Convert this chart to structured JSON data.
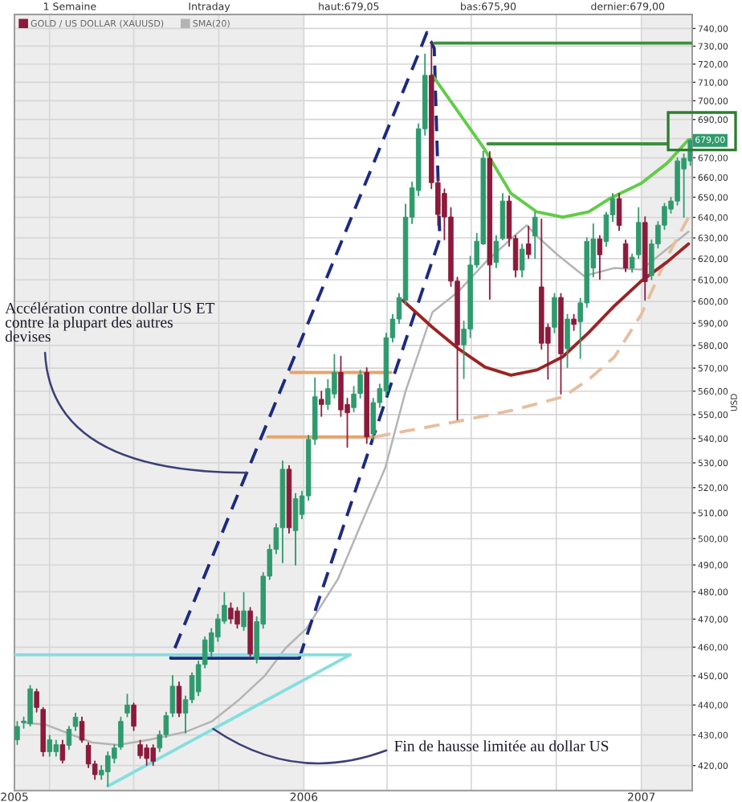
{
  "chart_data": {
    "type": "candlestick",
    "annotations": [
      "1 Semaine",
      "Intraday",
      "haut:679,05",
      "bas:675,90",
      "dernier:679,00",
      {
        "text": "Accélération contre dollar US ET\ncontre la plupart des autres\ndevises",
        "x": "2005-10-31",
        "y": 526
      },
      {
        "text": "Fin de hausse limitée au dollar US",
        "x": "2005-09-25",
        "y": 432.0
      },
      {
        "text": "679,00",
        "y": 679
      }
    ],
    "ylabel": "USD",
    "log": true,
    "xlim": [
      "2005-02-22",
      "2007-02-25"
    ],
    "ylim": [
      412,
      748
    ],
    "xticks": [
      {
        "value": "2005-02-22",
        "label": "2005"
      },
      {
        "value": "2005-04-01",
        "label": null
      },
      {
        "value": "2005-07-01",
        "label": null
      },
      {
        "value": "2005-10-01",
        "label": null
      },
      {
        "value": "2006-01-01",
        "label": "2006"
      },
      {
        "value": "2006-04-01",
        "label": null
      },
      {
        "value": "2006-07-01",
        "label": null
      },
      {
        "value": "2006-10-01",
        "label": null
      },
      {
        "value": "2007-01-01",
        "label": "2007"
      }
    ],
    "yticks": [
      {
        "value": 420,
        "label": "420,00"
      },
      {
        "value": 430,
        "label": "430,00"
      },
      {
        "value": 440,
        "label": "440,00"
      },
      {
        "value": 450,
        "label": "450,00"
      },
      {
        "value": 460,
        "label": "460,00"
      },
      {
        "value": 470,
        "label": "470,00"
      },
      {
        "value": 480,
        "label": "480,00"
      },
      {
        "value": 490,
        "label": "490,00"
      },
      {
        "value": 500,
        "label": "500,00"
      },
      {
        "value": 510,
        "label": "510,00"
      },
      {
        "value": 520,
        "label": "520,00"
      },
      {
        "value": 530,
        "label": "530,00"
      },
      {
        "value": 540,
        "label": "540,00"
      },
      {
        "value": 550,
        "label": "550,00"
      },
      {
        "value": 560,
        "label": "560,00"
      },
      {
        "value": 570,
        "label": "570,00"
      },
      {
        "value": 580,
        "label": "580,00"
      },
      {
        "value": 590,
        "label": "590,00"
      },
      {
        "value": 600,
        "label": "600,00"
      },
      {
        "value": 610,
        "label": "610,00"
      },
      {
        "value": 620,
        "label": "620,00"
      },
      {
        "value": 630,
        "label": "630,00"
      },
      {
        "value": 640,
        "label": "640,00"
      },
      {
        "value": 650,
        "label": "650,00"
      },
      {
        "value": 660,
        "label": "660,00"
      },
      {
        "value": 670,
        "label": "670,00"
      },
      {
        "value": 680,
        "label": null
      },
      {
        "value": 690,
        "label": "690,00"
      },
      {
        "value": 700,
        "label": "700,00"
      },
      {
        "value": 710,
        "label": "710,00"
      },
      {
        "value": 720,
        "label": "720,00"
      },
      {
        "value": 730,
        "label": "730,00"
      },
      {
        "value": 740,
        "label": "740,00"
      }
    ],
    "grid": true,
    "legend": "top left",
    "bands": [
      {
        "axis": "x",
        "from": "2005-02-22",
        "to": "2006-01-01",
        "color": "#ededed"
      },
      {
        "axis": "x",
        "from": "2007-01-01",
        "to": "2007-02-25",
        "color": "#ededed"
      }
    ],
    "series": [
      {
        "name": "GOLD / US DOLLAR (XAUUSD)",
        "color": "#8b1a3c",
        "x": [
          "2005-02-25",
          "2005-03-04",
          "2005-03-11",
          "2005-03-18",
          "2005-03-25",
          "2005-04-01",
          "2005-04-08",
          "2005-04-15",
          "2005-04-22",
          "2005-04-29",
          "2005-05-06",
          "2005-05-13",
          "2005-05-20",
          "2005-05-27",
          "2005-06-03",
          "2005-06-10",
          "2005-06-17",
          "2005-06-24",
          "2005-07-01",
          "2005-07-08",
          "2005-07-15",
          "2005-07-22",
          "2005-07-29",
          "2005-08-05",
          "2005-08-12",
          "2005-08-19",
          "2005-08-26",
          "2005-09-02",
          "2005-09-09",
          "2005-09-16",
          "2005-09-23",
          "2005-09-30",
          "2005-10-07",
          "2005-10-14",
          "2005-10-21",
          "2005-10-28",
          "2005-11-04",
          "2005-11-11",
          "2005-11-18",
          "2005-11-25",
          "2005-12-02",
          "2005-12-09",
          "2005-12-16",
          "2005-12-23",
          "2005-12-30",
          "2006-01-06",
          "2006-01-13",
          "2006-01-20",
          "2006-01-27",
          "2006-02-03",
          "2006-02-10",
          "2006-02-17",
          "2006-02-24",
          "2006-03-03",
          "2006-03-10",
          "2006-03-17",
          "2006-03-24",
          "2006-03-31",
          "2006-04-07",
          "2006-04-14",
          "2006-04-21",
          "2006-04-28",
          "2006-05-05",
          "2006-05-12",
          "2006-05-19",
          "2006-05-26",
          "2006-06-02",
          "2006-06-09",
          "2006-06-16",
          "2006-06-23",
          "2006-06-30",
          "2006-07-07",
          "2006-07-14",
          "2006-07-21",
          "2006-07-28",
          "2006-08-04",
          "2006-08-11",
          "2006-08-18",
          "2006-08-25",
          "2006-09-01",
          "2006-09-08",
          "2006-09-15",
          "2006-09-22",
          "2006-09-29",
          "2006-10-06",
          "2006-10-13",
          "2006-10-20",
          "2006-10-27",
          "2006-11-03",
          "2006-11-10",
          "2006-11-17",
          "2006-11-24",
          "2006-12-01",
          "2006-12-08",
          "2006-12-15",
          "2006-12-22",
          "2006-12-29",
          "2007-01-05",
          "2007-01-12",
          "2007-01-19",
          "2007-01-26",
          "2007-02-02",
          "2007-02-09",
          "2007-02-16",
          "2007-02-23"
        ],
        "ohlc": [
          [
            428.4,
            434.5,
            426.8,
            432.8
          ],
          [
            434.1,
            436.0,
            432.2,
            434.6
          ],
          [
            433.7,
            446.7,
            432.9,
            445.5
          ],
          [
            444.5,
            445.5,
            437.6,
            439.2
          ],
          [
            438.5,
            439.2,
            423.0,
            424.5
          ],
          [
            424.5,
            429.9,
            423.0,
            428.4
          ],
          [
            424.5,
            428.3,
            423.0,
            426.8
          ],
          [
            426.8,
            428.3,
            420.8,
            421.7
          ],
          [
            426.6,
            432.9,
            425.2,
            431.9
          ],
          [
            432.8,
            437.3,
            431.4,
            435.9
          ],
          [
            434.5,
            436.0,
            427.5,
            428.3
          ],
          [
            426.6,
            427.5,
            419.3,
            420.5
          ],
          [
            420.5,
            421.5,
            415.5,
            417.1
          ],
          [
            417.0,
            420.0,
            415.5,
            418.5
          ],
          [
            418.0,
            424.5,
            413.4,
            423.2
          ],
          [
            422.3,
            426.8,
            420.8,
            425.7
          ],
          [
            426.0,
            436.0,
            425.2,
            434.5
          ],
          [
            437.3,
            443.7,
            436.0,
            440.0
          ],
          [
            440.0,
            440.7,
            431.4,
            432.9
          ],
          [
            426.8,
            428.3,
            422.3,
            423.2
          ],
          [
            425.7,
            426.8,
            420.0,
            422.3
          ],
          [
            425.7,
            426.8,
            420.0,
            421.4
          ],
          [
            425.7,
            431.4,
            424.5,
            430.1
          ],
          [
            430.1,
            437.6,
            429.1,
            436.4
          ],
          [
            437.3,
            450.1,
            436.0,
            446.4
          ],
          [
            446.4,
            447.9,
            436.0,
            437.3
          ],
          [
            437.3,
            443.1,
            430.6,
            441.8
          ],
          [
            441.8,
            451.1,
            440.7,
            450.1
          ],
          [
            444.5,
            455.2,
            443.1,
            453.9
          ],
          [
            453.9,
            463.7,
            452.7,
            462.6
          ],
          [
            458.4,
            466.7,
            456.8,
            465.1
          ],
          [
            463.6,
            471.8,
            462.0,
            470.1
          ],
          [
            469.3,
            479.8,
            468.4,
            475.0
          ],
          [
            474.0,
            476.0,
            468.4,
            470.1
          ],
          [
            473.0,
            474.3,
            466.7,
            468.2
          ],
          [
            467.3,
            479.8,
            465.9,
            473.0
          ],
          [
            473.0,
            474.3,
            456.8,
            457.6
          ],
          [
            455.7,
            470.9,
            454.4,
            469.1
          ],
          [
            468.2,
            487.2,
            466.7,
            485.8
          ],
          [
            485.8,
            497.7,
            484.5,
            495.9
          ],
          [
            495.9,
            505.8,
            494.2,
            504.2
          ],
          [
            504.2,
            530.8,
            490.8,
            527.4
          ],
          [
            527.4,
            528.9,
            502.1,
            504.2
          ],
          [
            503.1,
            517.7,
            489.9,
            515.6
          ],
          [
            509.4,
            518.6,
            507.6,
            516.7
          ],
          [
            516.7,
            541.4,
            514.9,
            539.6
          ],
          [
            539.6,
            565.8,
            537.5,
            557.6
          ],
          [
            556.5,
            560.0,
            549.2,
            554.3
          ],
          [
            554.3,
            565.1,
            552.1,
            561.1
          ],
          [
            558.8,
            576.1,
            557.0,
            568.1
          ],
          [
            568.1,
            575.3,
            549.2,
            552.0
          ],
          [
            554.3,
            557.0,
            536.3,
            550.8
          ],
          [
            553.0,
            562.1,
            551.1,
            558.8
          ],
          [
            559.0,
            569.1,
            557.0,
            567.1
          ],
          [
            568.1,
            570.2,
            537.9,
            540.7
          ],
          [
            541.9,
            557.0,
            539.4,
            555.1
          ],
          [
            555.1,
            563.1,
            553.0,
            561.1
          ],
          [
            560.0,
            585.6,
            558.0,
            583.5
          ],
          [
            583.5,
            594.1,
            581.5,
            591.9
          ],
          [
            591.9,
            603.7,
            589.8,
            601.8
          ],
          [
            600.5,
            646.6,
            598.3,
            640.1
          ],
          [
            640.1,
            657.7,
            636.9,
            654.7
          ],
          [
            653.4,
            687.8,
            650.7,
            685.1
          ],
          [
            685.1,
            725.7,
            681.7,
            713.8
          ],
          [
            713.8,
            733.0,
            654.2,
            657.3
          ],
          [
            657.3,
            660.0,
            636.0,
            641.4
          ],
          [
            651.9,
            654.2,
            629.0,
            640.2
          ],
          [
            640.2,
            644.9,
            606.9,
            609.4
          ],
          [
            609.4,
            611.3,
            547.7,
            580.3
          ],
          [
            580.3,
            591.0,
            565.4,
            587.4
          ],
          [
            587.4,
            621.2,
            583.5,
            617.0
          ],
          [
            617.0,
            632.3,
            615.7,
            628.4
          ],
          [
            627.1,
            673.5,
            626.7,
            669.7
          ],
          [
            669.7,
            673.2,
            600.9,
            617.0
          ],
          [
            618.3,
            631.2,
            615.7,
            628.4
          ],
          [
            629.7,
            651.9,
            629.0,
            648.1
          ],
          [
            648.1,
            650.7,
            625.9,
            629.7
          ],
          [
            629.7,
            631.2,
            611.3,
            614.6
          ],
          [
            614.6,
            627.0,
            611.3,
            624.6
          ],
          [
            627.1,
            635.8,
            620.1,
            622.0
          ],
          [
            630.9,
            642.6,
            620.1,
            640.1
          ],
          [
            606.7,
            639.2,
            578.3,
            581.0
          ],
          [
            588.2,
            589.8,
            565.1,
            581.0
          ],
          [
            588.2,
            603.7,
            585.6,
            601.8
          ],
          [
            601.8,
            603.7,
            558.7,
            576.3
          ],
          [
            578.6,
            594.1,
            570.2,
            591.9
          ],
          [
            591.9,
            594.1,
            586.7,
            589.5
          ],
          [
            590.7,
            601.5,
            574.2,
            599.3
          ],
          [
            599.3,
            630.1,
            597.2,
            628.3
          ],
          [
            615.6,
            636.9,
            611.3,
            629.5
          ],
          [
            629.5,
            631.2,
            610.2,
            621.9
          ],
          [
            628.3,
            642.6,
            625.9,
            641.3
          ],
          [
            641.3,
            651.9,
            637.9,
            649.3
          ],
          [
            649.3,
            651.9,
            633.5,
            636.1
          ],
          [
            627.2,
            629.0,
            613.8,
            615.6
          ],
          [
            615.6,
            622.3,
            613.5,
            620.7
          ],
          [
            621.9,
            644.9,
            620.1,
            637.5
          ],
          [
            637.5,
            640.3,
            600.5,
            609.2
          ],
          [
            612.0,
            629.0,
            610.0,
            627.1
          ],
          [
            627.1,
            638.0,
            625.0,
            636.2
          ],
          [
            636.2,
            647.0,
            634.0,
            645.4
          ],
          [
            644.1,
            650.0,
            642.0,
            648.1
          ],
          [
            648.1,
            670.0,
            646.0,
            668.4
          ],
          [
            664.3,
            672.0,
            640.0,
            669.7
          ],
          [
            668.4,
            680.0,
            666.0,
            679.0
          ]
        ],
        "colors": [
          "#2f9a6e",
          "#2f9a6e",
          "#2f9a6e",
          "#8b1a3c",
          "#8b1a3c",
          "#2f9a6e",
          "#2f9a6e",
          "#8b1a3c",
          "#2f9a6e",
          "#2f9a6e",
          "#8b1a3c",
          "#8b1a3c",
          "#8b1a3c",
          "#2f9a6e",
          "#2f9a6e",
          "#2f9a6e",
          "#2f9a6e",
          "#2f9a6e",
          "#8b1a3c",
          "#8b1a3c",
          "#8b1a3c",
          "#8b1a3c",
          "#2f9a6e",
          "#2f9a6e",
          "#2f9a6e",
          "#8b1a3c",
          "#2f9a6e",
          "#2f9a6e",
          "#2f9a6e",
          "#2f9a6e",
          "#2f9a6e",
          "#2f9a6e",
          "#2f9a6e",
          "#8b1a3c",
          "#8b1a3c",
          "#2f9a6e",
          "#8b1a3c",
          "#2f9a6e",
          "#2f9a6e",
          "#2f9a6e",
          "#2f9a6e",
          "#2f9a6e",
          "#8b1a3c",
          "#2f9a6e",
          "#2f9a6e",
          "#2f9a6e",
          "#2f9a6e",
          "#8b1a3c",
          "#2f9a6e",
          "#2f9a6e",
          "#8b1a3c",
          "#8b1a3c",
          "#2f9a6e",
          "#2f9a6e",
          "#8b1a3c",
          "#2f9a6e",
          "#2f9a6e",
          "#2f9a6e",
          "#2f9a6e",
          "#2f9a6e",
          "#2f9a6e",
          "#2f9a6e",
          "#2f9a6e",
          "#2f9a6e",
          "#8b1a3c",
          "#8b1a3c",
          "#8b1a3c",
          "#8b1a3c",
          "#8b1a3c",
          "#2f9a6e",
          "#2f9a6e",
          "#2f9a6e",
          "#2f9a6e",
          "#8b1a3c",
          "#2f9a6e",
          "#2f9a6e",
          "#8b1a3c",
          "#8b1a3c",
          "#2f9a6e",
          "#8b1a3c",
          "#2f9a6e",
          "#8b1a3c",
          "#8b1a3c",
          "#2f9a6e",
          "#8b1a3c",
          "#2f9a6e",
          "#8b1a3c",
          "#2f9a6e",
          "#2f9a6e",
          "#2f9a6e",
          "#8b1a3c",
          "#2f9a6e",
          "#2f9a6e",
          "#8b1a3c",
          "#8b1a3c",
          "#2f9a6e",
          "#2f9a6e",
          "#8b1a3c",
          "#2f9a6e",
          "#2f9a6e",
          "#2f9a6e",
          "#2f9a6e",
          "#2f9a6e",
          "#2f9a6e",
          "#2f9a6e"
        ]
      },
      {
        "type": "line",
        "name": "SMA(20)",
        "color": "#b4b4b4",
        "x": [
          "2005-03-04",
          "2005-03-28",
          "2005-05-17",
          "2005-06-14",
          "2005-07-19",
          "2005-08-27",
          "2005-09-24",
          "2005-10-23",
          "2005-11-20",
          "2005-12-12",
          "2006-01-04",
          "2006-02-07",
          "2006-03-03",
          "2006-03-30",
          "2006-04-21",
          "2006-05-20",
          "2006-06-17",
          "2006-07-16",
          "2006-08-13",
          "2006-08-30",
          "2006-09-10",
          "2006-10-02",
          "2006-10-31",
          "2006-12-03",
          "2007-01-01",
          "2007-02-21"
        ],
        "values": [
          434.1,
          433.4,
          427.5,
          426.7,
          428.5,
          431.1,
          434.6,
          441.8,
          450.1,
          459.6,
          466.7,
          484.8,
          504.9,
          527.9,
          560.0,
          595.0,
          604.5,
          618.1,
          629.5,
          636.1,
          630.9,
          622.0,
          611.8,
          615.6,
          614.8,
          633.0
        ]
      },
      {
        "type": "line",
        "color": "#1c2a80",
        "line_style": "dashed",
        "x": [
          "2005-12-27",
          "2006-05-28",
          "2006-05-22",
          "2006-05-14",
          "2006-05-05",
          "2005-08-10"
        ],
        "values": [
          456.1,
          629.7,
          728.7,
          737.7,
          725.8,
          456.1
        ]
      },
      {
        "type": "line",
        "color": "#1c2a80",
        "x": [
          "2005-08-10",
          "2005-12-27"
        ],
        "values": [
          456.1,
          456.1
        ]
      },
      {
        "type": "line",
        "color": "#86dede",
        "x": [
          "2005-02-22",
          "2006-02-20"
        ],
        "values": [
          457.3,
          457.3
        ]
      },
      {
        "type": "line",
        "color": "#86dede",
        "x": [
          "2005-06-03",
          "2006-02-20"
        ],
        "values": [
          413.4,
          457.3
        ]
      },
      {
        "type": "line",
        "color": "#e8a468",
        "x": [
          "2005-12-18",
          "2006-04-05"
        ],
        "values": [
          568.1,
          568.1
        ]
      },
      {
        "type": "line",
        "color": "#e8a468",
        "x": [
          "2005-11-23",
          "2006-03-19"
        ],
        "values": [
          540.7,
          540.7
        ]
      },
      {
        "type": "line",
        "color": "#e6bfa0",
        "line_style": "dashed",
        "x": [
          "2006-03-19",
          "2006-06-12",
          "2006-08-13",
          "2006-10-08",
          "2006-11-05",
          "2006-12-03",
          "2007-01-01",
          "2007-01-29",
          "2007-02-21"
        ],
        "values": [
          540.7,
          546.8,
          551.7,
          557.5,
          565.0,
          575.0,
          594.0,
          621.0,
          640.0
        ]
      },
      {
        "type": "line",
        "color": "#62cc48",
        "x": [
          "2006-05-20",
          "2006-07-16",
          "2006-08-13",
          "2006-09-10",
          "2006-10-08",
          "2006-11-05",
          "2006-11-28",
          "2007-01-01",
          "2007-01-29",
          "2007-02-21"
        ],
        "values": [
          713.9,
          674.0,
          651.9,
          642.7,
          640.1,
          642.7,
          649.4,
          657.0,
          667.3,
          679.4
        ]
      },
      {
        "type": "line",
        "color": "#3d8f3d",
        "x": [
          "2006-05-22",
          "2007-02-25"
        ],
        "values": [
          731.7,
          731.7
        ]
      },
      {
        "type": "line",
        "color": "#3d8f3d",
        "x": [
          "2006-07-19",
          "2007-01-28"
        ],
        "values": [
          677.2,
          677.2
        ]
      },
      {
        "type": "line",
        "color": "#9a2424",
        "x": [
          "2006-04-18",
          "2006-05-20",
          "2006-06-17",
          "2006-07-16",
          "2006-08-13",
          "2006-09-10",
          "2006-10-08",
          "2006-11-05",
          "2006-12-03",
          "2007-01-01",
          "2007-01-29",
          "2007-02-21"
        ],
        "values": [
          600.5,
          588.2,
          578.6,
          570.4,
          566.9,
          569.2,
          575.0,
          585.8,
          598.0,
          609.5,
          618.5,
          627.1
        ]
      }
    ]
  }
}
